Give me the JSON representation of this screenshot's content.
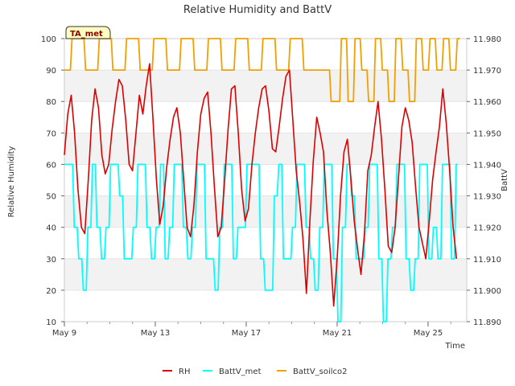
{
  "chart_data": {
    "type": "line",
    "title": "Relative Humidity and BattV",
    "xlabel": "Time",
    "ylabel": "Relative Humidity",
    "y2label": "BattV",
    "station_label": "TA_met",
    "xlim": [
      0,
      17.7
    ],
    "x_ticks": [
      {
        "value": 0,
        "label": "May 9"
      },
      {
        "value": 4,
        "label": "May 13"
      },
      {
        "value": 8,
        "label": "May 17"
      },
      {
        "value": 12,
        "label": "May 21"
      },
      {
        "value": 16,
        "label": "May 25"
      }
    ],
    "ylim": [
      10,
      100
    ],
    "y_ticks": [
      10,
      20,
      30,
      40,
      50,
      60,
      70,
      80,
      90,
      100
    ],
    "y2lim": [
      11.89,
      11.98
    ],
    "y2_ticks": [
      "11.890",
      "11.900",
      "11.910",
      "11.920",
      "11.930",
      "11.940",
      "11.950",
      "11.960",
      "11.970",
      "11.980"
    ],
    "grid": true,
    "legend_position": "bottom",
    "series": [
      {
        "name": "RH",
        "color": "#dd0000",
        "axis": "left",
        "x": [
          0.0,
          0.15,
          0.3,
          0.45,
          0.6,
          0.75,
          0.9,
          1.05,
          1.2,
          1.35,
          1.5,
          1.65,
          1.8,
          1.95,
          2.1,
          2.25,
          2.4,
          2.55,
          2.7,
          2.85,
          3.0,
          3.15,
          3.3,
          3.45,
          3.6,
          3.75,
          3.9,
          4.05,
          4.2,
          4.35,
          4.5,
          4.65,
          4.8,
          4.95,
          5.1,
          5.25,
          5.4,
          5.55,
          5.7,
          5.85,
          6.0,
          6.15,
          6.3,
          6.45,
          6.6,
          6.75,
          6.9,
          7.05,
          7.2,
          7.35,
          7.5,
          7.65,
          7.8,
          7.95,
          8.1,
          8.25,
          8.4,
          8.55,
          8.7,
          8.85,
          9.0,
          9.15,
          9.3,
          9.45,
          9.6,
          9.75,
          9.9,
          10.05,
          10.2,
          10.35,
          10.5,
          10.65,
          10.8,
          10.95,
          11.1,
          11.25,
          11.4,
          11.55,
          11.7,
          11.85,
          12.0,
          12.15,
          12.3,
          12.45,
          12.6,
          12.75,
          12.9,
          13.05,
          13.2,
          13.35,
          13.5,
          13.65,
          13.8,
          13.95,
          14.1,
          14.25,
          14.4,
          14.55,
          14.7,
          14.85,
          15.0,
          15.15,
          15.3,
          15.45,
          15.6,
          15.75,
          15.9,
          16.05,
          16.2,
          16.35,
          16.5,
          16.65,
          16.8,
          16.95,
          17.1,
          17.25
        ],
        "y": [
          63,
          76,
          82,
          70,
          52,
          40,
          38,
          55,
          74,
          84,
          78,
          63,
          57,
          60,
          71,
          80,
          87,
          85,
          74,
          60,
          58,
          70,
          82,
          76,
          85,
          92,
          74,
          55,
          41,
          47,
          59,
          68,
          75,
          78,
          70,
          55,
          40,
          37,
          47,
          64,
          76,
          81,
          83,
          70,
          53,
          37,
          40,
          55,
          71,
          84,
          85,
          70,
          52,
          42,
          46,
          60,
          70,
          78,
          84,
          85,
          77,
          65,
          64,
          72,
          81,
          88,
          90,
          74,
          58,
          48,
          36,
          19,
          42,
          61,
          75,
          70,
          64,
          45,
          32,
          15,
          30,
          50,
          64,
          68,
          56,
          42,
          33,
          25,
          38,
          58,
          63,
          72,
          80,
          68,
          52,
          34,
          32,
          40,
          56,
          72,
          78,
          74,
          67,
          53,
          40,
          35,
          30,
          42,
          55,
          64,
          72,
          84,
          73,
          58,
          40,
          30
        ]
      },
      {
        "name": "BattV_met",
        "color": "#00ffff",
        "axis": "right",
        "x": [
          0.0,
          0.3,
          0.5,
          0.7,
          0.9,
          1.1,
          1.3,
          1.5,
          1.7,
          1.9,
          2.1,
          2.3,
          2.5,
          2.7,
          2.9,
          3.1,
          3.3,
          3.5,
          3.7,
          3.9,
          4.1,
          4.3,
          4.5,
          4.7,
          4.9,
          5.1,
          5.3,
          5.5,
          5.7,
          5.9,
          6.1,
          6.3,
          6.5,
          6.7,
          6.9,
          7.1,
          7.3,
          7.5,
          7.7,
          7.9,
          8.1,
          8.3,
          8.5,
          8.7,
          8.9,
          9.1,
          9.3,
          9.5,
          9.7,
          9.9,
          10.1,
          10.3,
          10.5,
          10.7,
          10.9,
          11.1,
          11.3,
          11.5,
          11.7,
          11.9,
          12.1,
          12.3,
          12.5,
          12.7,
          12.9,
          13.1,
          13.3,
          13.5,
          13.7,
          13.9,
          14.1,
          14.3,
          14.5,
          14.7,
          14.9,
          15.1,
          15.3,
          15.5,
          15.7,
          15.9,
          16.1,
          16.3,
          16.5,
          16.7,
          16.9,
          17.1,
          17.3
        ],
        "y": [
          11.94,
          11.94,
          11.92,
          11.91,
          11.9,
          11.92,
          11.94,
          11.92,
          11.91,
          11.92,
          11.94,
          11.94,
          11.93,
          11.91,
          11.91,
          11.92,
          11.94,
          11.94,
          11.92,
          11.91,
          11.92,
          11.94,
          11.91,
          11.92,
          11.94,
          11.94,
          11.92,
          11.91,
          11.92,
          11.94,
          11.94,
          11.91,
          11.91,
          11.9,
          11.92,
          11.94,
          11.94,
          11.91,
          11.92,
          11.92,
          11.94,
          11.94,
          11.94,
          11.91,
          11.9,
          11.9,
          11.93,
          11.94,
          11.91,
          11.91,
          11.92,
          11.94,
          11.94,
          11.92,
          11.91,
          11.9,
          11.92,
          11.94,
          11.94,
          11.91,
          11.89,
          11.92,
          11.94,
          11.93,
          11.91,
          11.91,
          11.92,
          11.94,
          11.94,
          11.91,
          11.89,
          11.91,
          11.92,
          11.94,
          11.94,
          11.91,
          11.9,
          11.91,
          11.94,
          11.94,
          11.91,
          11.92,
          11.91,
          11.94,
          11.94,
          11.91,
          11.94
        ]
      },
      {
        "name": "BattV_soilco2",
        "color": "#f0a000",
        "axis": "right",
        "x": [
          0.0,
          0.6,
          1.2,
          1.8,
          2.4,
          3.0,
          3.6,
          4.2,
          4.8,
          5.4,
          6.0,
          6.6,
          7.2,
          7.8,
          8.4,
          9.0,
          9.6,
          10.2,
          10.8,
          11.4,
          12.0,
          12.3,
          12.6,
          12.9,
          13.2,
          13.5,
          13.8,
          14.1,
          14.4,
          14.7,
          15.0,
          15.3,
          15.6,
          15.9,
          16.2,
          16.5,
          16.8,
          17.1,
          17.4
        ],
        "y": [
          11.97,
          11.98,
          11.97,
          11.98,
          11.97,
          11.98,
          11.97,
          11.98,
          11.97,
          11.98,
          11.97,
          11.98,
          11.97,
          11.98,
          11.97,
          11.98,
          11.97,
          11.98,
          11.97,
          11.97,
          11.96,
          11.98,
          11.96,
          11.98,
          11.97,
          11.96,
          11.98,
          11.97,
          11.96,
          11.98,
          11.97,
          11.96,
          11.98,
          11.97,
          11.98,
          11.97,
          11.98,
          11.97,
          11.98
        ]
      }
    ]
  }
}
